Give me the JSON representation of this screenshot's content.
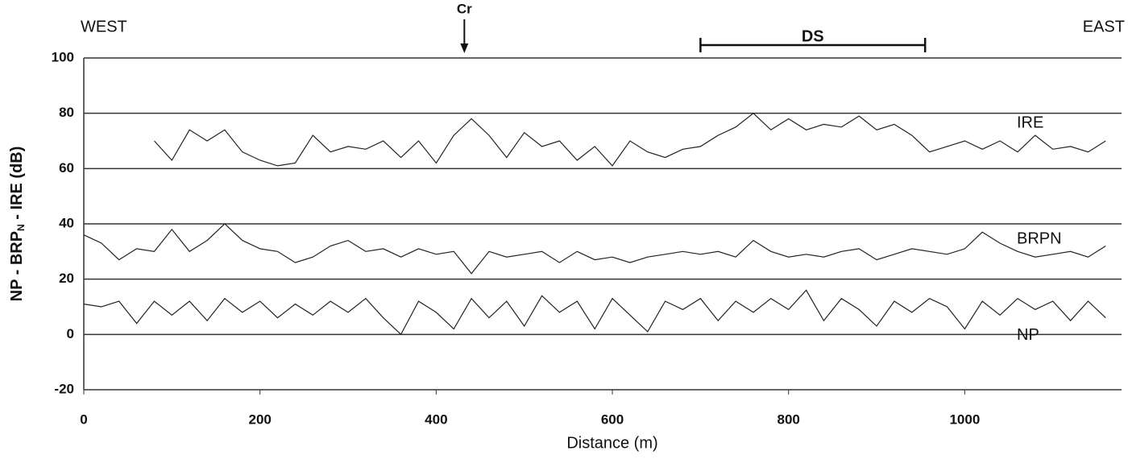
{
  "chart_data": {
    "type": "line",
    "y_label": [
      "NP - BRP",
      "N",
      " - IRE  (dB)"
    ],
    "x_label": "Distance (m)",
    "left_label": "WEST",
    "right_label": "EAST",
    "annotations": [
      {
        "text": "Cr",
        "x": 432
      },
      {
        "text": "DS",
        "x": [
          700,
          955
        ]
      }
    ],
    "xlim": [
      0,
      1178
    ],
    "xticks": [
      0,
      200,
      400,
      600,
      800,
      1000
    ],
    "ylim": [
      -20,
      100
    ],
    "yticks": [
      -20,
      0,
      20,
      40,
      60,
      80,
      100
    ],
    "grid": true,
    "x": [
      0,
      20,
      40,
      60,
      80,
      100,
      120,
      140,
      160,
      180,
      200,
      220,
      240,
      260,
      280,
      300,
      320,
      340,
      360,
      380,
      400,
      420,
      440,
      460,
      480,
      500,
      520,
      540,
      560,
      580,
      600,
      620,
      640,
      660,
      680,
      700,
      720,
      740,
      760,
      780,
      800,
      820,
      840,
      860,
      880,
      900,
      920,
      940,
      960,
      980,
      1000,
      1020,
      1040,
      1060,
      1080,
      1100,
      1120,
      1140,
      1160
    ],
    "series": [
      {
        "name": "IRE",
        "color": "#222222",
        "values": [
          null,
          null,
          null,
          null,
          70,
          63,
          74,
          70,
          74,
          66,
          63,
          61,
          62,
          72,
          66,
          68,
          67,
          70,
          64,
          70,
          62,
          72,
          78,
          72,
          64,
          73,
          68,
          70,
          63,
          68,
          61,
          70,
          66,
          64,
          67,
          68,
          72,
          75,
          80,
          74,
          78,
          74,
          76,
          75,
          79,
          74,
          76,
          72,
          66,
          68,
          70,
          67,
          70,
          66,
          72,
          67,
          68,
          66,
          70
        ]
      },
      {
        "name": "BRPN",
        "color": "#222222",
        "values": [
          36,
          33,
          27,
          31,
          30,
          38,
          30,
          34,
          40,
          34,
          31,
          30,
          26,
          28,
          32,
          34,
          30,
          31,
          28,
          31,
          29,
          30,
          22,
          30,
          28,
          29,
          30,
          26,
          30,
          27,
          28,
          26,
          28,
          29,
          30,
          29,
          30,
          28,
          34,
          30,
          28,
          29,
          28,
          30,
          31,
          27,
          29,
          31,
          30,
          29,
          31,
          37,
          33,
          30,
          28,
          29,
          30,
          28,
          32
        ]
      },
      {
        "name": "NP",
        "color": "#222222",
        "values": [
          11,
          10,
          12,
          4,
          12,
          7,
          12,
          5,
          13,
          8,
          12,
          6,
          11,
          7,
          12,
          8,
          13,
          6,
          0,
          12,
          8,
          2,
          13,
          6,
          12,
          3,
          14,
          8,
          12,
          2,
          13,
          7,
          1,
          12,
          9,
          13,
          5,
          12,
          8,
          13,
          9,
          16,
          5,
          13,
          9,
          3,
          12,
          8,
          13,
          10,
          2,
          12,
          7,
          13,
          9,
          12,
          5,
          12,
          6
        ]
      }
    ]
  }
}
